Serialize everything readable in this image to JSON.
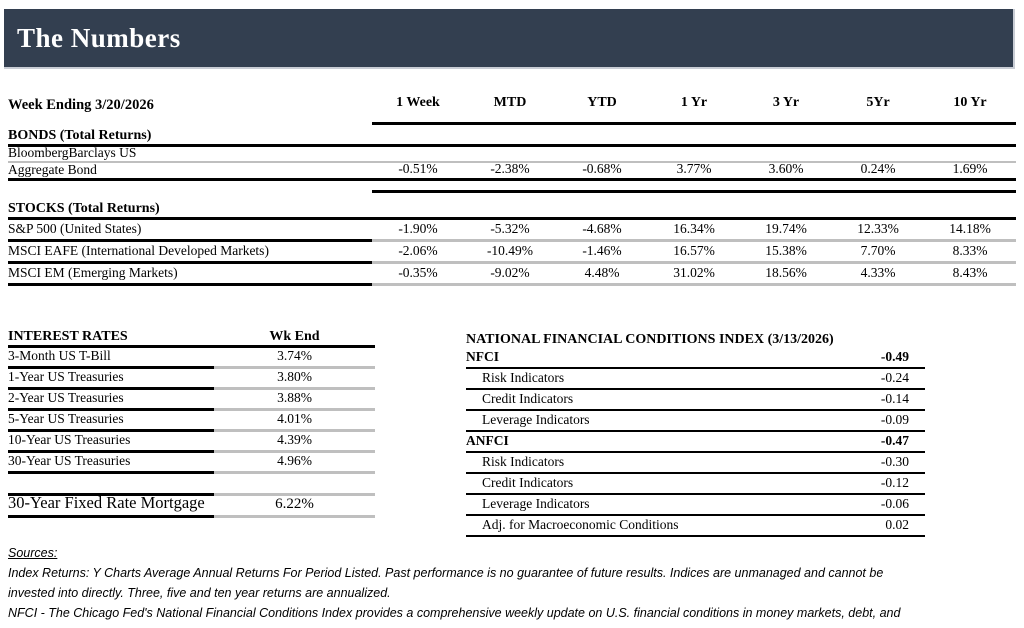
{
  "header": {
    "title": "The Numbers"
  },
  "returns": {
    "week_label": "Week Ending 3/20/2026",
    "columns": [
      "1 Week",
      "MTD",
      "YTD",
      "1 Yr",
      "3 Yr",
      "5Yr",
      "10 Yr"
    ],
    "bonds_title": "BONDS (Total Returns)",
    "bond_name_line1": "BloombergBarclays US",
    "bond_name_line2": "Aggregate Bond",
    "bond_values": [
      "-0.51%",
      "-2.38%",
      "-0.68%",
      "3.77%",
      "3.60%",
      "0.24%",
      "1.69%"
    ],
    "stocks_title": "STOCKS (Total Returns)",
    "stock_rows": [
      {
        "name": "S&P 500 (United States)",
        "values": [
          "-1.90%",
          "-5.32%",
          "-4.68%",
          "16.34%",
          "19.74%",
          "12.33%",
          "14.18%"
        ]
      },
      {
        "name": "MSCI EAFE (International Developed Markets)",
        "values": [
          "-2.06%",
          "-10.49%",
          "-1.46%",
          "16.57%",
          "15.38%",
          "7.70%",
          "8.33%"
        ]
      },
      {
        "name": "MSCI EM (Emerging Markets)",
        "values": [
          "-0.35%",
          "-9.02%",
          "4.48%",
          "31.02%",
          "18.56%",
          "4.33%",
          "8.43%"
        ]
      }
    ]
  },
  "interest_rates": {
    "title": "INTEREST RATES",
    "value_header": "Wk End",
    "rows": [
      {
        "name": "3-Month US T-Bill",
        "value": "3.74%"
      },
      {
        "name": "1-Year US Treasuries",
        "value": "3.80%"
      },
      {
        "name": "2-Year US Treasuries",
        "value": "3.88%"
      },
      {
        "name": "5-Year US Treasuries",
        "value": "4.01%"
      },
      {
        "name": "10-Year US Treasuries",
        "value": "4.39%"
      },
      {
        "name": "30-Year US Treasuries",
        "value": "4.96%"
      }
    ],
    "mortgage_row": {
      "name": "30-Year Fixed Rate Mortgage",
      "value": "6.22%"
    }
  },
  "nfci": {
    "title": "NATIONAL FINANCIAL CONDITIONS INDEX (3/13/2026)",
    "rows": [
      {
        "name": "NFCI",
        "value": "-0.49"
      },
      {
        "name": "Risk Indicators",
        "value": "-0.24"
      },
      {
        "name": "Credit Indicators",
        "value": "-0.14"
      },
      {
        "name": "Leverage Indicators",
        "value": "-0.09"
      },
      {
        "name": "ANFCI",
        "value": "-0.47"
      },
      {
        "name": "Risk Indicators",
        "value": "-0.30"
      },
      {
        "name": "Credit Indicators",
        "value": "-0.12"
      },
      {
        "name": "Leverage Indicators",
        "value": "-0.06"
      },
      {
        "name": "Adj. for Macroeconomic Conditions",
        "value": "0.02"
      }
    ]
  },
  "footnotes": {
    "sources_label": "Sources:",
    "lines": [
      "Index Returns:  Y Charts Average Annual Returns For Period Listed.  Past performance is no guarantee of future results.  Indices are unmanaged and cannot be",
      "invested into directly.  Three, five and ten year returns are annualized.",
      "NFCI - The Chicago Fed's National Financial Conditions Index provides a comprehensive weekly update on U.S. financial conditions in money markets, debt, and"
    ]
  },
  "colors": {
    "header_bar": "#333F50",
    "rule_black": "#000000",
    "rule_gray": "#BFBFBF"
  }
}
